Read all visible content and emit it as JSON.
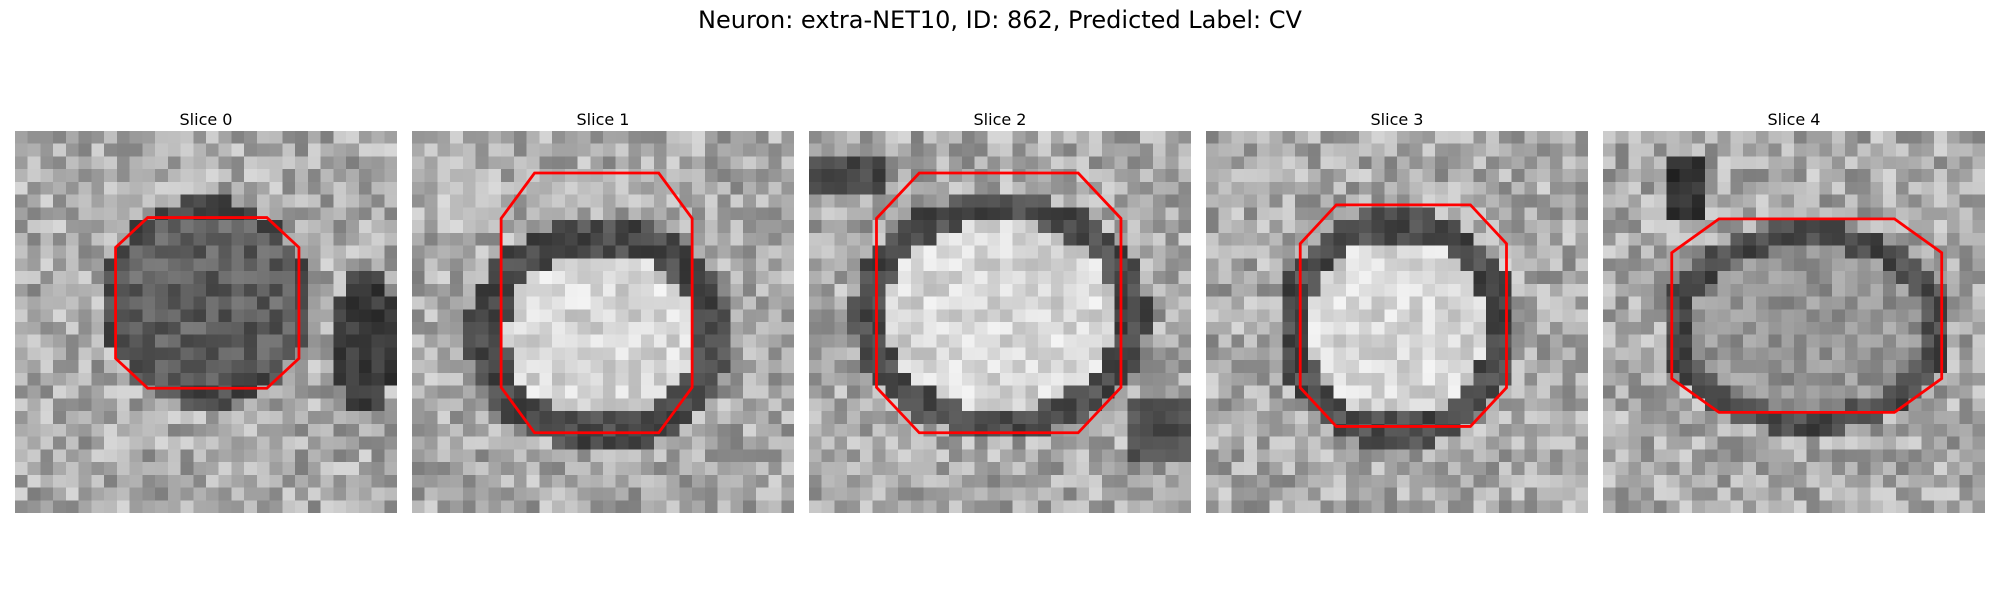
{
  "figure": {
    "title": "Neuron: extra-NET10, ID: 862, Predicted Label: CV"
  },
  "panels": [
    {
      "title": "Slice 0",
      "blob_brightness": "dark",
      "contour_color": "#ff0000"
    },
    {
      "title": "Slice 1",
      "blob_brightness": "bright",
      "contour_color": "#ff0000"
    },
    {
      "title": "Slice 2",
      "blob_brightness": "bright",
      "contour_color": "#ff0000"
    },
    {
      "title": "Slice 3",
      "blob_brightness": "bright",
      "contour_color": "#ff0000"
    },
    {
      "title": "Slice 4",
      "blob_brightness": "medium",
      "contour_color": "#ff0000"
    }
  ]
}
